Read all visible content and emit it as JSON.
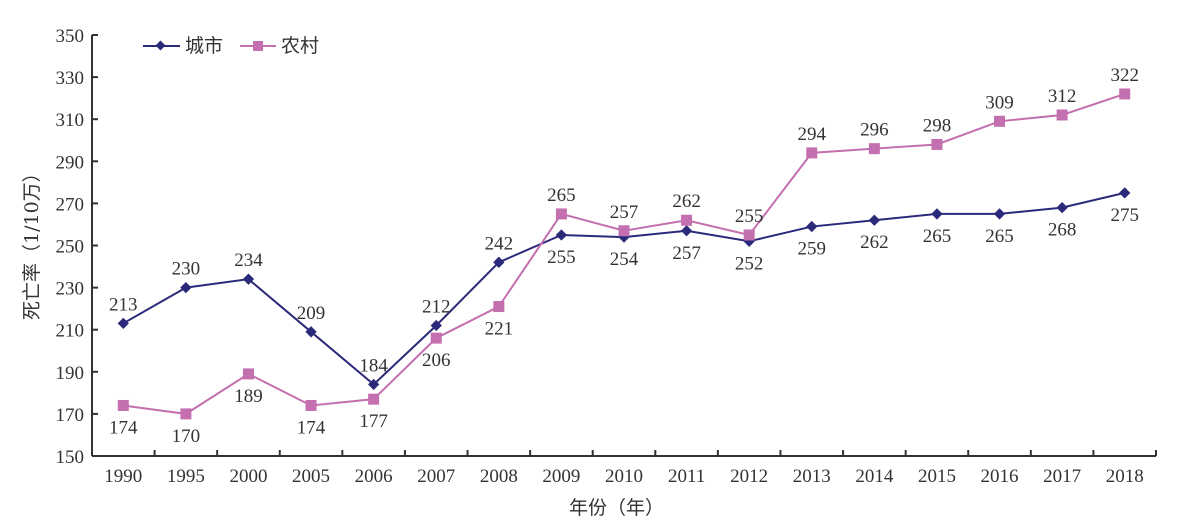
{
  "chart_data": {
    "type": "line",
    "title": "",
    "xlabel": "年份（年）",
    "ylabel": "死亡率（1/10万）",
    "ylim": [
      150,
      350
    ],
    "yticks": [
      150,
      170,
      190,
      210,
      230,
      250,
      270,
      290,
      310,
      330,
      350
    ],
    "grid": false,
    "legend_position": "top-left",
    "categories": [
      "1990",
      "1995",
      "2000",
      "2005",
      "2006",
      "2007",
      "2008",
      "2009",
      "2010",
      "2011",
      "2012",
      "2013",
      "2014",
      "2015",
      "2016",
      "2017",
      "2018"
    ],
    "series": [
      {
        "name": "城市",
        "color": "#2b2a7a",
        "marker": "diamond",
        "values": [
          213,
          230,
          234,
          209,
          184,
          212,
          242,
          255,
          254,
          257,
          252,
          259,
          262,
          265,
          265,
          268,
          275
        ],
        "label_pos": [
          "above",
          "above",
          "above",
          "above",
          "above",
          "above",
          "above",
          "below",
          "below",
          "below",
          "below",
          "below",
          "below",
          "below",
          "below",
          "below",
          "below"
        ]
      },
      {
        "name": "农村",
        "color": "#c36fb0",
        "marker": "square",
        "values": [
          174,
          170,
          189,
          174,
          177,
          206,
          221,
          265,
          257,
          262,
          255,
          294,
          296,
          298,
          309,
          312,
          322
        ],
        "label_pos": [
          "below",
          "below",
          "below",
          "below",
          "below",
          "below",
          "below",
          "above",
          "above",
          "above",
          "above",
          "above",
          "above",
          "above",
          "above",
          "above",
          "above"
        ]
      }
    ]
  },
  "axis": {
    "x_title": "年份（年）",
    "y_title": "死亡率（1/10万）"
  },
  "legend": {
    "urban_label": "城市",
    "rural_label": "农村"
  }
}
